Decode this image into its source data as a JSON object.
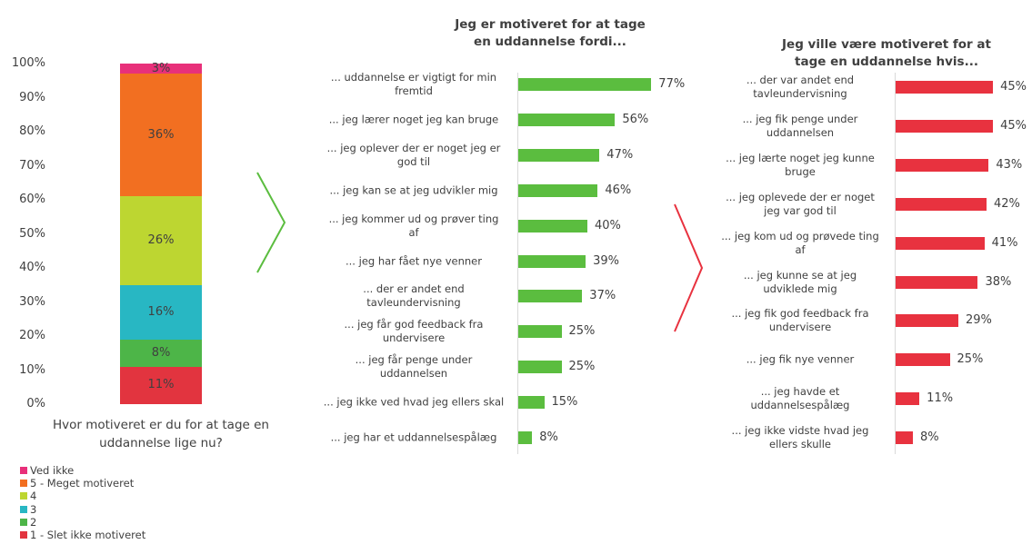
{
  "chart_data": [
    {
      "type": "bar",
      "stacked": true,
      "categories": [
        "Hvor motiveret er du for at tage en uddannelse lige nu?"
      ],
      "ylim": [
        0,
        100
      ],
      "yticks": [
        {
          "value": 0,
          "label": "0%"
        },
        {
          "value": 10,
          "label": "10%"
        },
        {
          "value": 20,
          "label": "20%"
        },
        {
          "value": 30,
          "label": "30%"
        },
        {
          "value": 40,
          "label": "40%"
        },
        {
          "value": 50,
          "label": "50%"
        },
        {
          "value": 60,
          "label": "60%"
        },
        {
          "value": 70,
          "label": "70%"
        },
        {
          "value": 80,
          "label": "80%"
        },
        {
          "value": 90,
          "label": "90%"
        },
        {
          "value": 100,
          "label": "100%"
        }
      ],
      "series": [
        {
          "name": "1 - Slet ikke motiveret",
          "color": "#e2343f",
          "values": [
            11
          ],
          "value_labels": [
            "11%"
          ]
        },
        {
          "name": "2",
          "color": "#4db548",
          "values": [
            8
          ],
          "value_labels": [
            "8%"
          ]
        },
        {
          "name": "3",
          "color": "#28b7c3",
          "values": [
            16
          ],
          "value_labels": [
            "16%"
          ]
        },
        {
          "name": "4",
          "color": "#bdd631",
          "values": [
            26
          ],
          "value_labels": [
            "26%"
          ]
        },
        {
          "name": "5 - Meget motiveret",
          "color": "#f26f21",
          "values": [
            36
          ],
          "value_labels": [
            "36%"
          ]
        },
        {
          "name": "Ved ikke",
          "color": "#e8307a",
          "values": [
            3
          ],
          "value_labels": [
            "3%"
          ]
        }
      ]
    },
    {
      "type": "barh",
      "title": "Jeg er motiveret for at tage en uddannelse fordi...",
      "color": "#5bbd3f",
      "categories": [
        "... uddannelse er vigtigt for min fremtid",
        "... jeg lærer noget jeg kan bruge",
        "... jeg oplever der er noget jeg er god til",
        "... jeg kan se at jeg udvikler mig",
        "... jeg kommer ud og prøver ting af",
        "... jeg har fået nye venner",
        "... der er andet end tavleundervisning",
        "... jeg får god feedback fra undervisere",
        "... jeg får penge under uddannelsen",
        "... jeg ikke ved hvad jeg ellers skal",
        "... jeg har et uddannelsespålæg"
      ],
      "values": [
        77,
        56,
        47,
        46,
        40,
        39,
        37,
        25,
        25,
        15,
        8
      ],
      "value_labels": [
        "77%",
        "56%",
        "47%",
        "46%",
        "40%",
        "39%",
        "37%",
        "25%",
        "25%",
        "15%",
        "8%"
      ]
    },
    {
      "type": "barh",
      "title": "Jeg ville være motiveret for at tage en uddannelse hvis...",
      "color": "#e8323f",
      "categories": [
        "... der var andet end tavleundervisning",
        "... jeg fik penge under uddannelsen",
        "... jeg lærte noget jeg kunne bruge",
        "... jeg oplevede der er noget jeg var god til",
        "... jeg kom ud og prøvede ting af",
        "... jeg kunne se at jeg udviklede mig",
        "... jeg fik god feedback fra undervisere",
        "... jeg fik nye venner",
        "... jeg havde et uddannelsespålæg",
        "... jeg ikke vidste hvad jeg ellers skulle"
      ],
      "values": [
        45,
        45,
        43,
        42,
        41,
        38,
        29,
        25,
        11,
        8
      ],
      "value_labels": [
        "45%",
        "45%",
        "43%",
        "42%",
        "41%",
        "38%",
        "29%",
        "25%",
        "11%",
        "8%"
      ]
    }
  ]
}
